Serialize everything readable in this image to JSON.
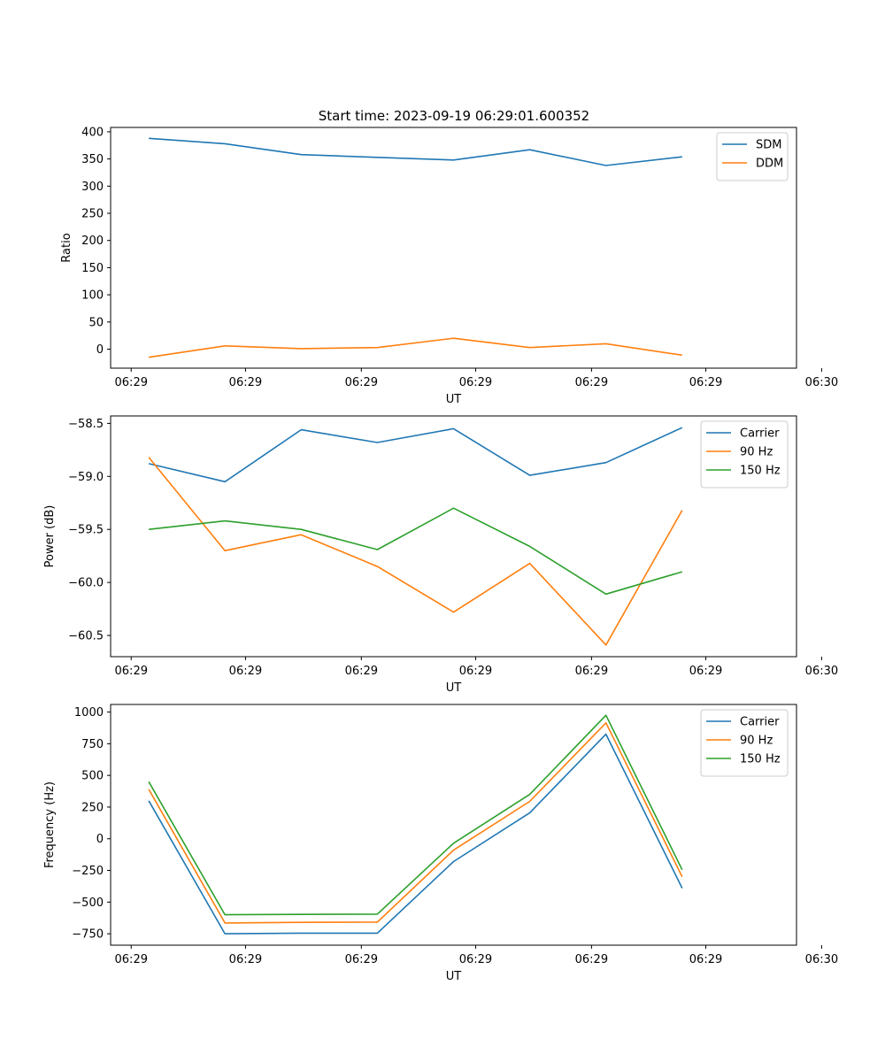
{
  "figure_title": "Start time: 2023-09-19 06:29:01.600352",
  "chart_data": [
    {
      "type": "line",
      "title": "Start time: 2023-09-19 06:29:01.600352",
      "xlabel": "UT",
      "ylabel": "Ratio",
      "x": [
        1,
        2,
        3,
        4,
        5,
        6,
        7,
        8
      ],
      "xlim": [
        0.5,
        9.5
      ],
      "xtick_positions": [
        0.77,
        2.27,
        3.79,
        5.29,
        6.81,
        8.31,
        9.83
      ],
      "xtick_labels": [
        "06:29",
        "06:29",
        "06:29",
        "06:29",
        "06:29",
        "06:29",
        "06:30"
      ],
      "ylim": [
        -35,
        408
      ],
      "yticks": [
        0,
        50,
        100,
        150,
        200,
        250,
        300,
        350,
        400
      ],
      "ytick_labels": [
        "0",
        "50",
        "100",
        "150",
        "200",
        "250",
        "300",
        "350",
        "400"
      ],
      "legend_position": "top-right",
      "series": [
        {
          "name": "SDM",
          "color": "#1f77b4",
          "values": [
            388,
            378,
            358,
            353,
            348,
            367,
            338,
            354
          ]
        },
        {
          "name": "DDM",
          "color": "#ff7f0e",
          "values": [
            -15,
            6,
            1,
            3,
            20,
            3,
            10,
            -11
          ]
        }
      ]
    },
    {
      "type": "line",
      "title": "",
      "xlabel": "UT",
      "ylabel": "Power (dB)",
      "x": [
        1,
        2,
        3,
        4,
        5,
        6,
        7,
        8
      ],
      "xlim": [
        0.5,
        9.5
      ],
      "xtick_positions": [
        0.77,
        2.27,
        3.79,
        5.29,
        6.81,
        8.31,
        9.83
      ],
      "xtick_labels": [
        "06:29",
        "06:29",
        "06:29",
        "06:29",
        "06:29",
        "06:29",
        "06:30"
      ],
      "ylim": [
        -60.7,
        -58.43
      ],
      "yticks": [
        -60.5,
        -60.0,
        -59.5,
        -59.0,
        -58.5
      ],
      "ytick_labels": [
        "−60.5",
        "−60.0",
        "−59.5",
        "−59.0",
        "−58.5"
      ],
      "legend_position": "top-right",
      "series": [
        {
          "name": "Carrier",
          "color": "#1f77b4",
          "values": [
            -58.88,
            -59.05,
            -58.56,
            -58.68,
            -58.55,
            -58.99,
            -58.87,
            -58.54
          ]
        },
        {
          "name": "90 Hz",
          "color": "#ff7f0e",
          "values": [
            -58.82,
            -59.7,
            -59.55,
            -59.85,
            -60.28,
            -59.82,
            -60.59,
            -59.32
          ]
        },
        {
          "name": "150 Hz",
          "color": "#2ca02c",
          "values": [
            -59.5,
            -59.42,
            -59.5,
            -59.69,
            -59.3,
            -59.66,
            -60.11,
            -59.9
          ]
        }
      ]
    },
    {
      "type": "line",
      "title": "",
      "xlabel": "UT",
      "ylabel": "Frequency (Hz)",
      "x": [
        1,
        2,
        3,
        4,
        5,
        6,
        7,
        8
      ],
      "xlim": [
        0.5,
        9.5
      ],
      "xtick_positions": [
        0.77,
        2.27,
        3.79,
        5.29,
        6.81,
        8.31,
        9.83
      ],
      "xtick_labels": [
        "06:29",
        "06:29",
        "06:29",
        "06:29",
        "06:29",
        "06:29",
        "06:30"
      ],
      "ylim": [
        -840,
        1060
      ],
      "yticks": [
        -750,
        -500,
        -250,
        0,
        250,
        500,
        750,
        1000
      ],
      "ytick_labels": [
        "−750",
        "−500",
        "−250",
        "0",
        "250",
        "500",
        "750",
        "1000"
      ],
      "legend_position": "top-right",
      "series": [
        {
          "name": "Carrier",
          "color": "#1f77b4",
          "values": [
            300,
            -750,
            -745,
            -745,
            -180,
            205,
            825,
            -390
          ]
        },
        {
          "name": "90 Hz",
          "color": "#ff7f0e",
          "values": [
            390,
            -665,
            -660,
            -658,
            -90,
            295,
            915,
            -300
          ]
        },
        {
          "name": "150 Hz",
          "color": "#2ca02c",
          "values": [
            450,
            -600,
            -597,
            -595,
            -35,
            350,
            975,
            -245
          ]
        }
      ]
    }
  ]
}
